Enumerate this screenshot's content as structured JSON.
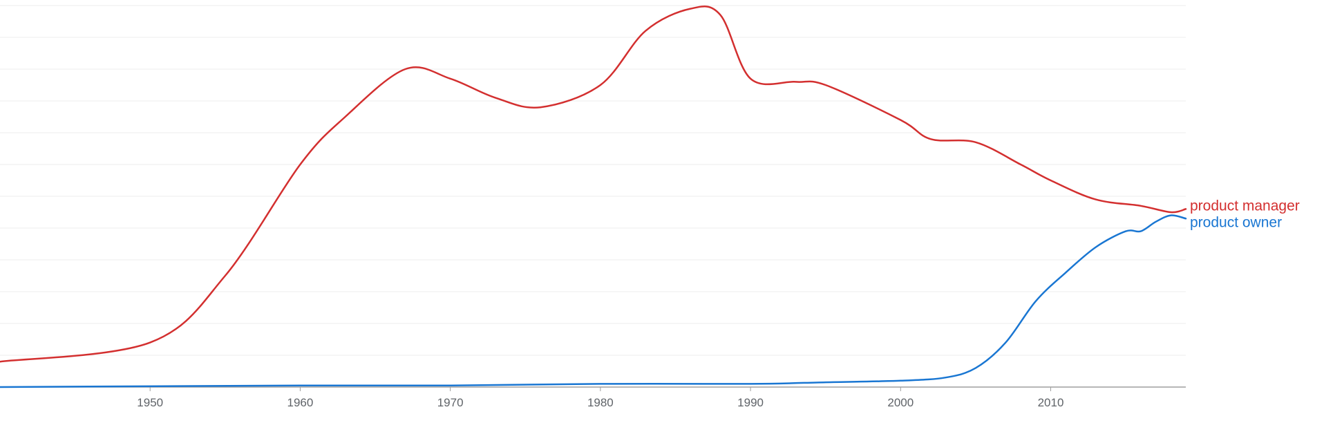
{
  "chart_data": {
    "type": "line",
    "title": "",
    "xlabel": "",
    "ylabel": "",
    "xlim": [
      1940,
      2019
    ],
    "ylim": [
      0,
      1.2
    ],
    "x_ticks": [
      1950,
      1960,
      1970,
      1980,
      1990,
      2000,
      2010
    ],
    "y_axis_labels_visible": false,
    "grid": "horizontal",
    "legend": "inline-right",
    "series": [
      {
        "name": "product manager",
        "color": "#d32f2f",
        "x": [
          1940,
          1950,
          1955,
          1960,
          1963,
          1967,
          1970,
          1973,
          1976,
          1980,
          1983,
          1986,
          1988,
          1990,
          1993,
          1995,
          2000,
          2002,
          2005,
          2008,
          2010,
          2013,
          2016,
          2018,
          2019
        ],
        "y": [
          0.08,
          0.14,
          0.35,
          0.7,
          0.85,
          1.0,
          0.97,
          0.91,
          0.88,
          0.95,
          1.12,
          1.19,
          1.17,
          0.97,
          0.96,
          0.95,
          0.84,
          0.78,
          0.77,
          0.7,
          0.65,
          0.59,
          0.57,
          0.55,
          0.56
        ]
      },
      {
        "name": "product owner",
        "color": "#1976d2",
        "x": [
          1940,
          1960,
          1970,
          1980,
          1990,
          1995,
          2000,
          2003,
          2005,
          2007,
          2009,
          2011,
          2013,
          2015,
          2016,
          2017,
          2018,
          2019
        ],
        "y": [
          0.0,
          0.005,
          0.005,
          0.01,
          0.01,
          0.015,
          0.02,
          0.03,
          0.06,
          0.14,
          0.27,
          0.36,
          0.44,
          0.49,
          0.49,
          0.52,
          0.54,
          0.53
        ]
      }
    ]
  }
}
